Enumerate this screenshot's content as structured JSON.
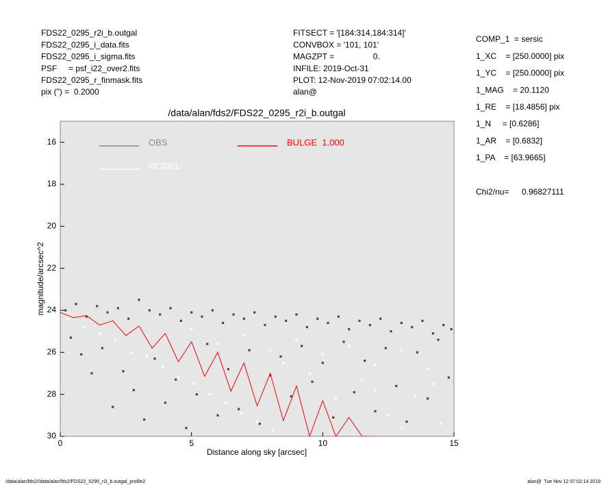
{
  "header_left": [
    "FDS22_0295_r2i_b.outgal",
    "FDS22_0295_i_data.fits",
    "FDS22_0295_i_sigma.fits",
    "PSF     = psf_i22_over2.fits",
    "FDS22_0295_r_finmask.fits",
    "pix (\") =  0.2000"
  ],
  "header_mid": [
    "FITSECT = '[184:314,184:314]'",
    "CONVBOX = '101, 101'",
    "MAGZPT =                 0.",
    "INFILE: 2019-Oct-31",
    "PLOT: 12-Nov-2019 07:02:14.00",
    "alan@"
  ],
  "params": [
    "COMP_1  = sersic",
    "1_XC    = [250.0000] pix",
    "1_YC    = [250.0000] pix",
    "1_MAG    = 20.1120",
    "1_RE    = [18.4856] pix",
    "1_N     = [0.6286]",
    "1_AR    = [0.6832]",
    "1_PA    = [63.9665]"
  ],
  "chi2_label": "Chi2/nu=",
  "chi2_value": "0.96827111",
  "footer_left": "/data/alan/fds2//data/alan/fds2/FDS22_0295_r2i_b.outgal_profile2",
  "footer_right": "alan@  Tue Nov 12 07:02:14 2019",
  "chart_data": {
    "type": "scatter",
    "title": "/data/alan/fds2/FDS22_0295_r2i_b.outgal",
    "xlabel": "Distance along sky [arcsec]",
    "ylabel": "magnitude/arcsec^2",
    "xlim": [
      0,
      15
    ],
    "xticks": [
      0,
      5,
      10,
      15
    ],
    "ylim": [
      15,
      30
    ],
    "y_inverted": true,
    "yticks": [
      16,
      18,
      20,
      22,
      24,
      26,
      28,
      30
    ],
    "background": "#e6e6e6",
    "series": [
      {
        "name": "OBS",
        "color": "#484848",
        "style": "points",
        "x": [
          0.2,
          0.6,
          1.0,
          1.4,
          1.8,
          2.2,
          2.6,
          3.0,
          3.4,
          3.8,
          4.2,
          4.6,
          5.0,
          5.4,
          5.8,
          6.2,
          6.6,
          7.0,
          7.4,
          7.8,
          8.2,
          8.6,
          9.0,
          9.4,
          9.8,
          10.2,
          10.6,
          11.0,
          11.4,
          11.8,
          12.2,
          12.6,
          13.0,
          13.4,
          13.8,
          14.2,
          14.6,
          14.9,
          0.4,
          0.8,
          1.2,
          1.6,
          2.0,
          2.4,
          2.8,
          3.2,
          3.6,
          4.0,
          4.4,
          4.8,
          5.2,
          5.6,
          6.0,
          6.4,
          6.8,
          7.2,
          7.6,
          8.0,
          8.4,
          8.8,
          9.2,
          9.6,
          10.0,
          10.4,
          10.8,
          11.2,
          11.6,
          12.0,
          12.4,
          12.8,
          13.2,
          13.6,
          14.0,
          14.4,
          14.8
        ],
        "values": [
          24.0,
          23.7,
          24.3,
          23.8,
          24.1,
          23.9,
          24.4,
          23.5,
          24.0,
          24.2,
          23.9,
          24.5,
          24.1,
          24.3,
          24.0,
          24.6,
          24.2,
          24.4,
          24.1,
          24.7,
          24.3,
          24.5,
          24.2,
          24.8,
          24.4,
          24.6,
          24.3,
          24.9,
          24.5,
          24.7,
          24.4,
          25.0,
          24.6,
          24.8,
          24.5,
          25.1,
          24.7,
          24.9,
          25.3,
          26.1,
          27.0,
          25.8,
          28.6,
          26.9,
          27.8,
          29.2,
          26.3,
          28.4,
          27.3,
          29.6,
          28.0,
          25.6,
          29.0,
          26.8,
          28.7,
          25.9,
          29.4,
          27.1,
          26.2,
          28.1,
          25.7,
          27.4,
          26.5,
          29.1,
          25.5,
          27.9,
          26.4,
          28.8,
          25.8,
          27.6,
          29.3,
          26.0,
          28.2,
          25.4,
          27.2
        ]
      },
      {
        "name": "MODEL",
        "color": "#ffffff",
        "style": "points",
        "x": [
          0.3,
          0.9,
          1.5,
          2.1,
          2.7,
          3.3,
          3.9,
          4.5,
          5.1,
          5.7,
          6.3,
          6.9,
          7.5,
          8.1,
          3.0,
          4.0,
          5.0,
          6.0,
          7.0,
          8.0,
          9.0,
          10.0,
          11.0,
          12.0,
          13.0,
          14.0,
          9.5,
          10.5,
          11.5,
          12.5,
          13.5,
          14.5,
          8.5,
          12.0,
          13.0,
          14.2
        ],
        "values": [
          24.4,
          24.8,
          25.1,
          25.4,
          26.0,
          26.2,
          26.7,
          27.2,
          27.5,
          28.0,
          28.4,
          28.9,
          29.3,
          29.7,
          24.8,
          25.3,
          24.9,
          25.6,
          25.2,
          25.9,
          25.4,
          26.1,
          25.7,
          26.6,
          25.9,
          26.8,
          27.0,
          28.2,
          27.3,
          29.0,
          28.1,
          29.4,
          26.5,
          27.8,
          29.6,
          27.5
        ]
      },
      {
        "name": "BULGE  1.000",
        "color": "#ff0000",
        "style": "line",
        "x": [
          0,
          0.5,
          1,
          1.5,
          2,
          2.5,
          3,
          3.5,
          4,
          4.5,
          5,
          5.5,
          6,
          6.5,
          7,
          7.5,
          8,
          8.5,
          9,
          9.5,
          10,
          10.5,
          11,
          11.5,
          12
        ],
        "values": [
          24.1,
          24.35,
          24.25,
          24.7,
          24.5,
          25.2,
          24.75,
          25.8,
          25.1,
          26.45,
          25.5,
          27.15,
          26.0,
          27.85,
          26.5,
          28.55,
          27.0,
          29.25,
          27.6,
          30.0,
          28.3,
          30.0,
          29.1,
          30.0,
          30.0
        ]
      }
    ]
  }
}
